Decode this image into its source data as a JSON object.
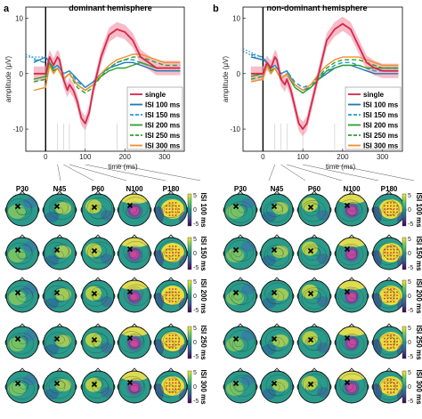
{
  "panels": [
    {
      "letter": "a",
      "title": "dominant hemisphere"
    },
    {
      "letter": "b",
      "title": "non-dominant hemisphere"
    }
  ],
  "components": [
    "P30",
    "N45",
    "P60",
    "N100",
    "P180"
  ],
  "component_latencies_ms": [
    30,
    45,
    60,
    100,
    180
  ],
  "isi_rows": [
    "ISI 100 ms",
    "ISI 150 ms",
    "ISI 200 ms",
    "ISI 250 ms",
    "ISI 300 ms"
  ],
  "colorbar": {
    "ticks": [
      "5",
      "0",
      "-5"
    ],
    "colors": [
      "#440154",
      "#3b528b",
      "#21918c",
      "#5ec962",
      "#fde725"
    ]
  },
  "colors": {
    "single": "#d6274a",
    "isi100": "#1f77b4",
    "isi150": "#1f9bd1",
    "isi200": "#2ca02c",
    "isi250": "#2ca02c",
    "isi300": "#f28e2b",
    "band": "#f2a0b0"
  },
  "chart_data": [
    {
      "type": "line",
      "title": "dominant hemisphere",
      "xlabel": "time (ms)",
      "ylabel": "amplitude (μV)",
      "xlim": [
        -50,
        350
      ],
      "ylim": [
        -14,
        12
      ],
      "xticks": [
        0,
        100,
        200,
        300
      ],
      "yticks": [
        -10,
        0,
        10
      ],
      "legend": "lower-right",
      "series": [
        {
          "name": "single",
          "style": "solid",
          "color": "#d6274a",
          "x": [
            -30,
            0,
            10,
            20,
            30,
            35,
            45,
            55,
            60,
            70,
            80,
            90,
            100,
            110,
            120,
            140,
            160,
            180,
            200,
            220,
            240,
            260,
            280,
            300,
            320,
            340
          ],
          "y": [
            0,
            0,
            3,
            1.5,
            3,
            2.5,
            -1,
            -3,
            -2,
            -3,
            -5,
            -8,
            -9,
            -7,
            -3,
            3,
            7,
            8,
            7.5,
            6,
            3,
            2,
            1,
            1,
            1,
            1
          ]
        },
        {
          "name": "ISI 100 ms",
          "style": "solid",
          "color": "#1f77b4",
          "x": [
            -30,
            0,
            10,
            20,
            30,
            45,
            60,
            80,
            100,
            120,
            140,
            160,
            180,
            200,
            220,
            240,
            260,
            280,
            300,
            340
          ],
          "y": [
            2,
            3,
            2,
            1,
            1.5,
            0,
            0.5,
            -1,
            -2.5,
            -1.5,
            0,
            1,
            1.5,
            2,
            2,
            1.5,
            1,
            0.5,
            0.5,
            0.5
          ]
        },
        {
          "name": "ISI 150 ms",
          "style": "dashed",
          "color": "#1f9bd1",
          "x": [
            -30,
            0,
            10,
            20,
            30,
            45,
            60,
            80,
            100,
            120,
            140,
            160,
            180,
            200,
            220,
            240,
            260,
            280,
            300,
            340
          ],
          "y": [
            2.5,
            2,
            1.5,
            1,
            1.5,
            0,
            0.5,
            -1.5,
            -2.5,
            -1.5,
            0,
            1,
            2,
            2.5,
            2.5,
            2,
            1.5,
            1,
            1,
            1
          ]
        },
        {
          "name": "ISI 200 ms",
          "style": "solid",
          "color": "#2ca02c",
          "x": [
            -30,
            0,
            10,
            20,
            30,
            45,
            60,
            80,
            100,
            120,
            140,
            160,
            180,
            200,
            220,
            240,
            260,
            280,
            300,
            340
          ],
          "y": [
            -1,
            -0.5,
            2,
            0.5,
            1,
            -1,
            0,
            -2,
            -3,
            -2,
            -0.5,
            0.5,
            1,
            1,
            1.5,
            2,
            1.5,
            1,
            1,
            1
          ]
        },
        {
          "name": "ISI 250 ms",
          "style": "dashed",
          "color": "#2ca02c",
          "x": [
            -30,
            0,
            10,
            20,
            30,
            45,
            60,
            80,
            100,
            120,
            140,
            160,
            180,
            200,
            220,
            240,
            260,
            280,
            300,
            340
          ],
          "y": [
            -1.5,
            -1,
            2,
            0.5,
            1,
            -1,
            0,
            -2.5,
            -3.5,
            -2.5,
            -0.5,
            1,
            2,
            2.5,
            3,
            3,
            2.5,
            2,
            1.5,
            1.5
          ]
        },
        {
          "name": "ISI 300 ms",
          "style": "solid",
          "color": "#f28e2b",
          "x": [
            -30,
            0,
            10,
            20,
            30,
            45,
            60,
            80,
            100,
            120,
            140,
            160,
            180,
            200,
            220,
            240,
            260,
            280,
            300,
            340
          ],
          "y": [
            -3,
            -2.5,
            1.5,
            0,
            1,
            -1,
            0,
            -2,
            -3,
            -2,
            0,
            1.5,
            2.5,
            3,
            3.5,
            3.5,
            3,
            2.5,
            2,
            2
          ]
        }
      ]
    },
    {
      "type": "line",
      "title": "non-dominant hemisphere",
      "xlabel": "time (ms)",
      "ylabel": "amplitude (μV)",
      "xlim": [
        -50,
        350
      ],
      "ylim": [
        -14,
        12
      ],
      "xticks": [
        0,
        100,
        200,
        300
      ],
      "yticks": [
        -10,
        0,
        10
      ],
      "legend": "lower-right",
      "series": [
        {
          "name": "single",
          "style": "solid",
          "color": "#d6274a",
          "x": [
            -30,
            0,
            10,
            20,
            30,
            35,
            45,
            55,
            60,
            70,
            80,
            90,
            100,
            110,
            120,
            140,
            160,
            180,
            200,
            220,
            240,
            260,
            280,
            300,
            320,
            340
          ],
          "y": [
            0,
            0,
            2,
            1,
            3,
            2.5,
            -1,
            -2,
            -1,
            -3,
            -6,
            -9,
            -10,
            -9,
            -6,
            0,
            6,
            8,
            9,
            8,
            5,
            2,
            1,
            0.5,
            0.5,
            0.5
          ]
        },
        {
          "name": "ISI 100 ms",
          "style": "solid",
          "color": "#1f77b4",
          "x": [
            -30,
            0,
            10,
            20,
            30,
            45,
            60,
            80,
            100,
            120,
            140,
            160,
            180,
            200,
            220,
            240,
            260,
            280,
            300,
            340
          ],
          "y": [
            3,
            2.5,
            2,
            1,
            1.5,
            0,
            0.5,
            -2,
            -3,
            -2.5,
            -1,
            0,
            1,
            1.5,
            1.5,
            1,
            0.5,
            0,
            0,
            0
          ]
        },
        {
          "name": "ISI 150 ms",
          "style": "dashed",
          "color": "#1f9bd1",
          "x": [
            -30,
            0,
            10,
            20,
            30,
            45,
            60,
            80,
            100,
            120,
            140,
            160,
            180,
            200,
            220,
            240,
            260,
            280,
            300,
            340
          ],
          "y": [
            3.5,
            3,
            2,
            1,
            1.5,
            0,
            0.5,
            -1.5,
            -2.5,
            -2,
            -0.5,
            0.5,
            1.5,
            2,
            2,
            1.5,
            1,
            0.5,
            0.5,
            0.5
          ]
        },
        {
          "name": "ISI 200 ms",
          "style": "solid",
          "color": "#2ca02c",
          "x": [
            -30,
            0,
            10,
            20,
            30,
            45,
            60,
            80,
            100,
            120,
            140,
            160,
            180,
            200,
            220,
            240,
            260,
            280,
            300,
            340
          ],
          "y": [
            -0.5,
            0,
            2,
            0.5,
            1,
            -1,
            0,
            -2.5,
            -3.5,
            -2.5,
            -1,
            0.5,
            1,
            1.5,
            1.5,
            1.5,
            1,
            1,
            1,
            1
          ]
        },
        {
          "name": "ISI 250 ms",
          "style": "dashed",
          "color": "#2ca02c",
          "x": [
            -30,
            0,
            10,
            20,
            30,
            45,
            60,
            80,
            100,
            120,
            140,
            160,
            180,
            200,
            220,
            240,
            260,
            280,
            300,
            340
          ],
          "y": [
            -1,
            -0.5,
            2,
            0.5,
            1,
            -1,
            0,
            -2.5,
            -3.5,
            -2.5,
            -0.5,
            1,
            2,
            2.5,
            2.5,
            2.5,
            2,
            1.5,
            1,
            1
          ]
        },
        {
          "name": "ISI 300 ms",
          "style": "solid",
          "color": "#f28e2b",
          "x": [
            -30,
            0,
            10,
            20,
            30,
            45,
            60,
            80,
            100,
            120,
            140,
            160,
            180,
            200,
            220,
            240,
            260,
            280,
            300,
            340
          ],
          "y": [
            -1.5,
            -1,
            1.5,
            0,
            1,
            -1,
            0,
            -2,
            -3,
            -2,
            0,
            1.5,
            2.5,
            3,
            3,
            3,
            2.5,
            2,
            1.5,
            1.5
          ]
        }
      ]
    }
  ]
}
